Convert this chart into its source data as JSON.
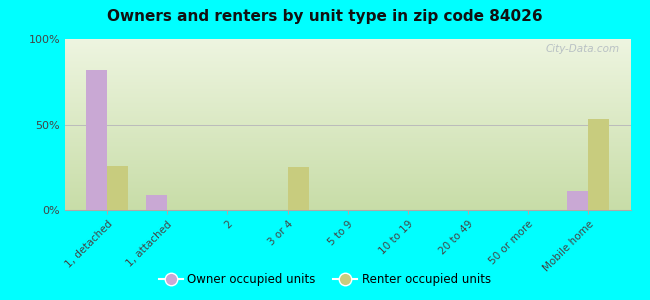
{
  "title": "Owners and renters by unit type in zip code 84026",
  "categories": [
    "1, detached",
    "1, attached",
    "2",
    "3 or 4",
    "5 to 9",
    "10 to 19",
    "20 to 49",
    "50 or more",
    "Mobile home"
  ],
  "owner_values": [
    82,
    9,
    0,
    0,
    0,
    0,
    0,
    0,
    11
  ],
  "renter_values": [
    26,
    0,
    0,
    25,
    0,
    0,
    0,
    0,
    53
  ],
  "owner_color": "#c9a8d4",
  "renter_color": "#c8cc7e",
  "bg_outer": "#00ffff",
  "ylim": [
    0,
    100
  ],
  "yticks": [
    0,
    50,
    100
  ],
  "ytick_labels": [
    "0%",
    "50%",
    "100%"
  ],
  "bar_width": 0.35,
  "legend_owner": "Owner occupied units",
  "legend_renter": "Renter occupied units",
  "watermark": "City-Data.com"
}
